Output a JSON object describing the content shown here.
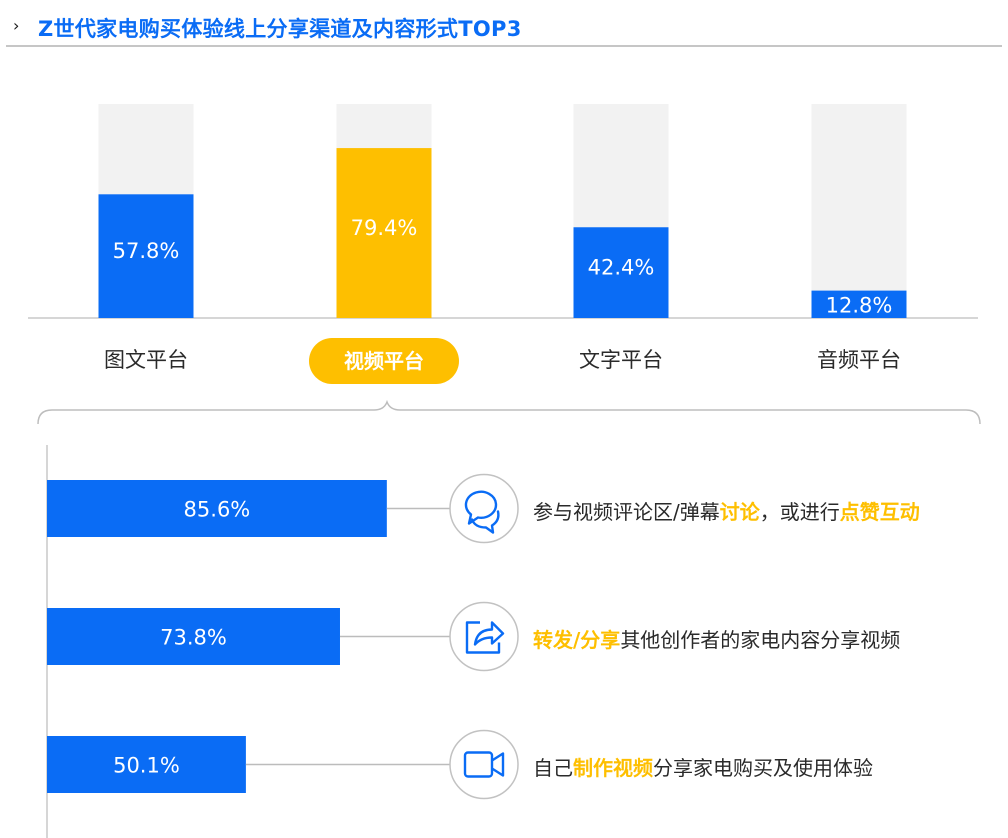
{
  "header": {
    "title": "Z世代家电购买体验线上分享渠道及内容形式TOP3"
  },
  "colors": {
    "blue": "#0A6CF5",
    "yellow": "#FEBF00",
    "track": "#F2F2F2"
  },
  "chart_data": [
    {
      "type": "bar",
      "title": "",
      "categories": [
        "图文平台",
        "视频平台",
        "文字平台",
        "音频平台"
      ],
      "values": [
        57.8,
        79.4,
        42.4,
        12.8
      ],
      "value_labels": [
        "57.8%",
        "79.4%",
        "42.4%",
        "12.8%"
      ],
      "highlight": "视频平台",
      "ylim": [
        0,
        100
      ],
      "unit": "%",
      "grid": false
    },
    {
      "type": "bar",
      "orientation": "horizontal",
      "title": "",
      "categories": [
        "参与视频评论区/弹幕讨论，或进行点赞互动",
        "转发/分享其他创作者的家电内容分享视频",
        "自己制作视频分享家电购买及使用体验"
      ],
      "values": [
        85.6,
        73.8,
        50.1
      ],
      "value_labels": [
        "85.6%",
        "73.8%",
        "50.1%"
      ],
      "icons": [
        "chat-bubbles-icon",
        "share-arrow-icon",
        "video-camera-icon"
      ],
      "xlim": [
        0,
        100
      ],
      "unit": "%",
      "grid": false
    }
  ],
  "details": [
    {
      "parts": [
        {
          "t": "参与视频评论区/弹幕",
          "em": false
        },
        {
          "t": "讨论",
          "em": true
        },
        {
          "t": "，或进行",
          "em": false
        },
        {
          "t": "点赞互动",
          "em": true
        }
      ]
    },
    {
      "parts": [
        {
          "t": "转发/分享",
          "em": true
        },
        {
          "t": "其他创作者的家电内容分享视频",
          "em": false
        }
      ]
    },
    {
      "parts": [
        {
          "t": "自己",
          "em": false
        },
        {
          "t": "制作视频",
          "em": true
        },
        {
          "t": "分享家电购买及使用体验",
          "em": false
        }
      ]
    }
  ]
}
